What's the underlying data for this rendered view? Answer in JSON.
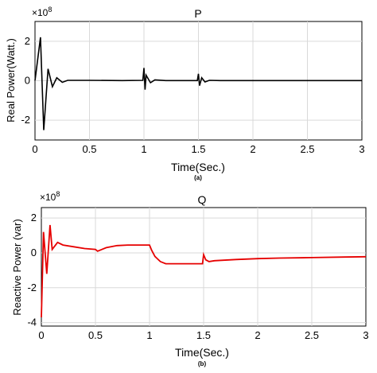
{
  "chart_data": [
    {
      "id": "P",
      "type": "line",
      "title": "P",
      "subtitle": "(a)",
      "xlabel": "Time(Sec.)",
      "ylabel": "Real Power(Watt.)",
      "y_multiplier": "×10",
      "y_multiplier_exp": "8",
      "xlim": [
        0,
        3
      ],
      "ylim": [
        -3,
        3
      ],
      "xticks": [
        "0",
        "0.5",
        "1",
        "1.5",
        "2",
        "2.5",
        "3"
      ],
      "yticks": [
        "2",
        "0",
        "-2"
      ],
      "grid": true,
      "color": "#000000",
      "x": [
        0,
        0.05,
        0.08,
        0.12,
        0.16,
        0.2,
        0.25,
        0.3,
        0.5,
        0.8,
        0.99,
        1.0,
        1.01,
        1.02,
        1.06,
        1.1,
        1.2,
        1.3,
        1.49,
        1.5,
        1.51,
        1.53,
        1.56,
        1.6,
        1.7,
        2.0,
        2.5,
        3.0
      ],
      "y": [
        0,
        2.2,
        -2.5,
        0.6,
        -0.3,
        0.15,
        -0.08,
        0.02,
        0.02,
        0.01,
        0.02,
        0.65,
        -0.45,
        0.28,
        -0.1,
        0.04,
        0.01,
        0.01,
        0.01,
        0.35,
        -0.25,
        0.15,
        -0.06,
        0.02,
        0.01,
        0.01,
        0.01,
        0.01
      ]
    },
    {
      "id": "Q",
      "type": "line",
      "title": "Q",
      "subtitle": "(b)",
      "xlabel": "Time(Sec.)",
      "ylabel": "Reactive Power (var)",
      "y_multiplier": "×10",
      "y_multiplier_exp": "8",
      "xlim": [
        0,
        3
      ],
      "ylim": [
        -4.2,
        2.6
      ],
      "xticks": [
        "0",
        "0.5",
        "1",
        "1.5",
        "2",
        "2.5",
        "3"
      ],
      "yticks": [
        "2",
        "0",
        "-2",
        "-4"
      ],
      "grid": true,
      "color": "#e60000",
      "x": [
        0,
        0.02,
        0.05,
        0.08,
        0.1,
        0.15,
        0.2,
        0.3,
        0.4,
        0.5,
        0.52,
        0.6,
        0.7,
        0.8,
        0.9,
        1.0,
        1.02,
        1.05,
        1.1,
        1.15,
        1.2,
        1.3,
        1.4,
        1.49,
        1.5,
        1.52,
        1.55,
        1.6,
        1.8,
        2.0,
        2.2,
        2.5,
        2.8,
        3.0
      ],
      "y": [
        -3.7,
        1.2,
        -1.2,
        1.6,
        0.2,
        0.6,
        0.45,
        0.35,
        0.25,
        0.2,
        0.1,
        0.3,
        0.42,
        0.45,
        0.45,
        0.45,
        0.15,
        -0.2,
        -0.5,
        -0.62,
        -0.62,
        -0.62,
        -0.62,
        -0.62,
        -0.1,
        -0.4,
        -0.5,
        -0.45,
        -0.38,
        -0.33,
        -0.3,
        -0.27,
        -0.24,
        -0.22
      ]
    }
  ]
}
